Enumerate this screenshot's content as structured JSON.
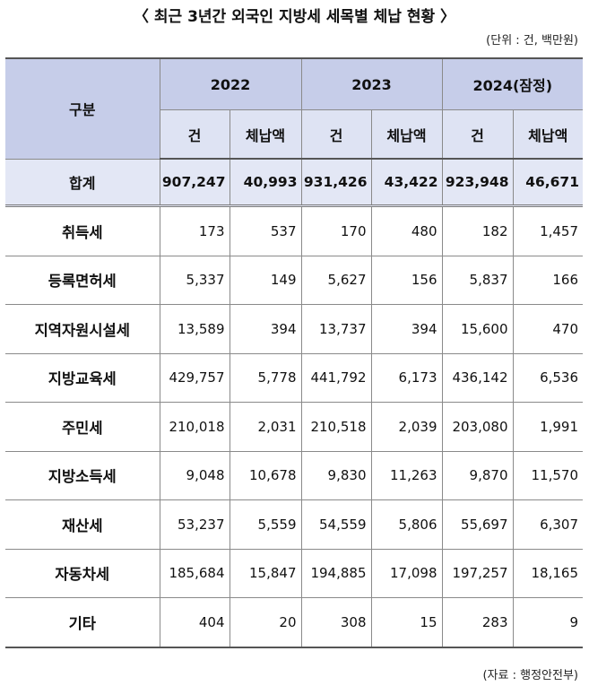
{
  "title": "〈 최근 3년간 외국인 지방세 세목별 체납 현황 〉",
  "unit": "(단위 : 건, 백만원)",
  "source": "(자료 : 행정안전부)",
  "header": {
    "category": "구분",
    "years": [
      "2022",
      "2023",
      "2024(잠정)"
    ],
    "count_label": "건",
    "amount_label": "체납액"
  },
  "total": {
    "label": "합계",
    "values": [
      "907,247",
      "40,993",
      "931,426",
      "43,422",
      "923,948",
      "46,671"
    ]
  },
  "rows": [
    {
      "label": "취득세",
      "values": [
        "173",
        "537",
        "170",
        "480",
        "182",
        "1,457"
      ]
    },
    {
      "label": "등록면허세",
      "values": [
        "5,337",
        "149",
        "5,627",
        "156",
        "5,837",
        "166"
      ]
    },
    {
      "label": "지역자원시설세",
      "values": [
        "13,589",
        "394",
        "13,737",
        "394",
        "15,600",
        "470"
      ]
    },
    {
      "label": "지방교육세",
      "values": [
        "429,757",
        "5,778",
        "441,792",
        "6,173",
        "436,142",
        "6,536"
      ]
    },
    {
      "label": "주민세",
      "values": [
        "210,018",
        "2,031",
        "210,518",
        "2,039",
        "203,080",
        "1,991"
      ]
    },
    {
      "label": "지방소득세",
      "values": [
        "9,048",
        "10,678",
        "9,830",
        "11,263",
        "9,870",
        "11,570"
      ]
    },
    {
      "label": "재산세",
      "values": [
        "53,237",
        "5,559",
        "54,559",
        "5,806",
        "55,697",
        "6,307"
      ]
    },
    {
      "label": "자동차세",
      "values": [
        "185,684",
        "15,847",
        "194,885",
        "17,098",
        "197,257",
        "18,165"
      ]
    },
    {
      "label": "기타",
      "values": [
        "404",
        "20",
        "308",
        "15",
        "283",
        "9"
      ]
    }
  ]
}
